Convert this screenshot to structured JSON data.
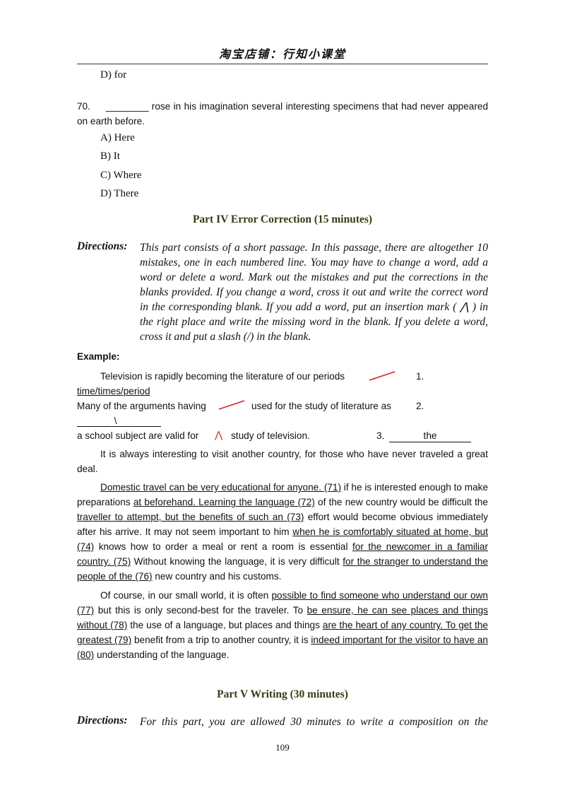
{
  "header": {
    "title": "淘宝店铺：行知小课堂"
  },
  "prev_option": "D) for",
  "question": {
    "number": "70.",
    "blank": "________",
    "text": "rose in his imagination several interesting specimens that had never appeared on earth before.",
    "options": [
      "A) Here",
      "B) It",
      "C) Where",
      "D) There"
    ]
  },
  "part4": {
    "title": "Part IV Error Correction (15 minutes)",
    "directions_label": "Directions:",
    "directions": "This part consists of a short passage. In this passage, there are altogether 10 mistakes, one in each numbered line. You may have to change a word, add a word or delete a word. Mark out the mistakes and put the corrections in the blanks provided. If you change a word, cross it out and write the correct word in the corresponding blank. If you add a word, put an insertion mark ( ⋀ ) in the right place and write the missing word in the blank. If you delete a word, cross it and put a slash (/) in the blank."
  },
  "example": {
    "label": "Example:",
    "line1": "Television is rapidly becoming the literature of our periods",
    "line1_end": ".",
    "num1": "1.",
    "ans1": "time/times/period",
    "line2a": "Many of the arguments having",
    "line2b": "used for the study of literature as",
    "num2": "2.",
    "ans2": "\\",
    "line3a": "a school subject are valid for",
    "caret": "⋀",
    "line3b": "study of television.",
    "num3": "3.",
    "ans3": "the",
    "mark_color": "#e02020"
  },
  "passage": [
    [
      {
        "t": "It is always interesting to visit another country, for those who have never traveled a great deal."
      }
    ],
    [
      {
        "t": "Domestic travel can be very educational for anyone. (71)",
        "u": true
      },
      {
        "t": " if he is interested enough to make preparations "
      },
      {
        "t": "at beforehand. Learning the language (72)",
        "u": true
      },
      {
        "t": " of the new country would be difficult the "
      },
      {
        "t": "traveller to attempt, but the benefits of such an (73)",
        "u": true
      },
      {
        "t": " effort would become obvious immediately after his arrive. It may not seem important to him "
      },
      {
        "t": "when he is comfortably situated at home, but (74)",
        "u": true
      },
      {
        "t": " knows how to order a meal or rent a room is essential "
      },
      {
        "t": "for the newcomer in a familiar country. (75)",
        "u": true
      },
      {
        "t": " Without knowing the language, it is very difficult "
      },
      {
        "t": "for the stranger to understand the people of the (76)",
        "u": true
      },
      {
        "t": " new country and his customs."
      }
    ],
    [
      {
        "t": "Of course, in our small world, it is often "
      },
      {
        "t": "possible to find someone who understand our own (77)",
        "u": true
      },
      {
        "t": " but this is only second-best for the traveler. To "
      },
      {
        "t": "be ensure, he can see places and things without (78)",
        "u": true
      },
      {
        "t": " the use of a language, but places and things "
      },
      {
        "t": "are the heart of any country. To get the greatest (79)",
        "u": true
      },
      {
        "t": " benefit from a trip to another country, it is "
      },
      {
        "t": "indeed important for the visitor to have an (80)",
        "u": true
      },
      {
        "t": " understanding of the language."
      }
    ]
  ],
  "part5": {
    "title": "Part V Writing (30 minutes)",
    "directions_label": "Directions:",
    "directions": "For this part, you are allowed 30 minutes to write a composition on the"
  },
  "page_number": "109"
}
